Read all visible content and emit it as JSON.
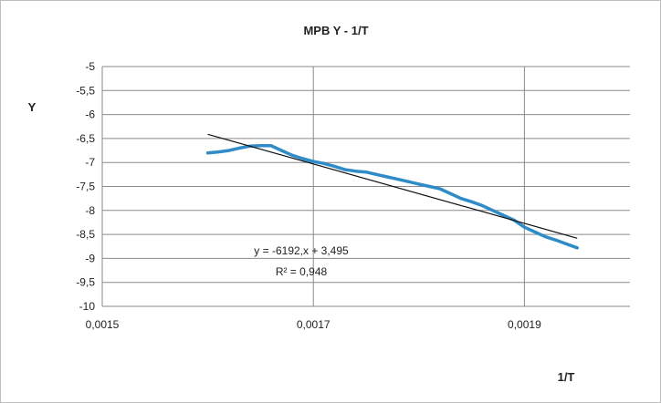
{
  "chart_data": {
    "type": "scatter",
    "title": "MPB Y - 1/T",
    "xlabel": "1/T",
    "ylabel": "Y",
    "xlim": [
      0.0015,
      0.002
    ],
    "ylim": [
      -10,
      -5
    ],
    "x_ticks": [
      0.0015,
      0.0017,
      0.0019
    ],
    "x_tick_labels": [
      "0,0015",
      "0,0017",
      "0,0019"
    ],
    "y_ticks": [
      -5,
      -5.5,
      -6,
      -6.5,
      -7,
      -7.5,
      -8,
      -8.5,
      -9,
      -9.5,
      -10
    ],
    "y_tick_labels": [
      "-5",
      "-5,5",
      "-6",
      "-6,5",
      "-7",
      "-7,5",
      "-8",
      "-8,5",
      "-9",
      "-9,5",
      "-10"
    ],
    "grid": true,
    "series": [
      {
        "color": "#2e8cc8",
        "points": [
          [
            0.0016,
            -6.8
          ],
          [
            0.00161,
            -6.78
          ],
          [
            0.00162,
            -6.75
          ],
          [
            0.00163,
            -6.7
          ],
          [
            0.00164,
            -6.66
          ],
          [
            0.00165,
            -6.65
          ],
          [
            0.00166,
            -6.65
          ],
          [
            0.00167,
            -6.75
          ],
          [
            0.00168,
            -6.85
          ],
          [
            0.00169,
            -6.92
          ],
          [
            0.0017,
            -6.98
          ],
          [
            0.00171,
            -7.02
          ],
          [
            0.00172,
            -7.08
          ],
          [
            0.00173,
            -7.15
          ],
          [
            0.00174,
            -7.18
          ],
          [
            0.00175,
            -7.2
          ],
          [
            0.00176,
            -7.25
          ],
          [
            0.00177,
            -7.3
          ],
          [
            0.00178,
            -7.35
          ],
          [
            0.00179,
            -7.4
          ],
          [
            0.0018,
            -7.45
          ],
          [
            0.00181,
            -7.5
          ],
          [
            0.00182,
            -7.55
          ],
          [
            0.00183,
            -7.65
          ],
          [
            0.00184,
            -7.75
          ],
          [
            0.00185,
            -7.82
          ],
          [
            0.00186,
            -7.9
          ],
          [
            0.00187,
            -8.0
          ],
          [
            0.00188,
            -8.1
          ],
          [
            0.00189,
            -8.2
          ],
          [
            0.0019,
            -8.35
          ],
          [
            0.00191,
            -8.45
          ],
          [
            0.00192,
            -8.55
          ],
          [
            0.00193,
            -8.62
          ],
          [
            0.00194,
            -8.7
          ],
          [
            0.00195,
            -8.78
          ]
        ]
      }
    ],
    "trendline": {
      "slope": -6192,
      "intercept": 3.495,
      "x_range": [
        0.0016,
        0.00195
      ],
      "color": "#111111"
    },
    "annotations": {
      "equation": "y = -6192,x + 3,495",
      "r_squared": "R² = 0,948"
    }
  }
}
